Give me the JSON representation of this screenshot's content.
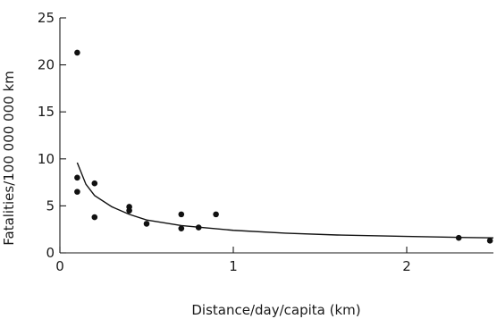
{
  "chart_data": {
    "type": "scatter",
    "xlabel": "Distance/day/capita (km)",
    "ylabel": "Fatalities/100 000 000 km",
    "xlim": [
      0,
      2.5
    ],
    "ylim": [
      0,
      25
    ],
    "xticks": [
      0,
      1,
      2
    ],
    "yticks": [
      0,
      5,
      10,
      15,
      20,
      25
    ],
    "grid": false,
    "legend": "none",
    "points": [
      {
        "x": 0.1,
        "y": 21.3
      },
      {
        "x": 0.1,
        "y": 8.0
      },
      {
        "x": 0.1,
        "y": 6.5
      },
      {
        "x": 0.2,
        "y": 7.4
      },
      {
        "x": 0.2,
        "y": 3.8
      },
      {
        "x": 0.4,
        "y": 4.9
      },
      {
        "x": 0.4,
        "y": 4.5
      },
      {
        "x": 0.5,
        "y": 3.1
      },
      {
        "x": 0.7,
        "y": 4.1
      },
      {
        "x": 0.7,
        "y": 2.6
      },
      {
        "x": 0.8,
        "y": 2.7
      },
      {
        "x": 0.9,
        "y": 4.1
      },
      {
        "x": 2.3,
        "y": 1.6
      },
      {
        "x": 2.48,
        "y": 1.3
      }
    ],
    "fit_curve": {
      "type": "line",
      "x": [
        0.1,
        0.15,
        0.2,
        0.3,
        0.4,
        0.5,
        0.7,
        1.0,
        1.3,
        1.6,
        2.0,
        2.3,
        2.5
      ],
      "y": [
        9.6,
        7.3,
        6.1,
        4.9,
        4.1,
        3.5,
        2.9,
        2.4,
        2.1,
        1.9,
        1.75,
        1.65,
        1.6
      ]
    }
  }
}
